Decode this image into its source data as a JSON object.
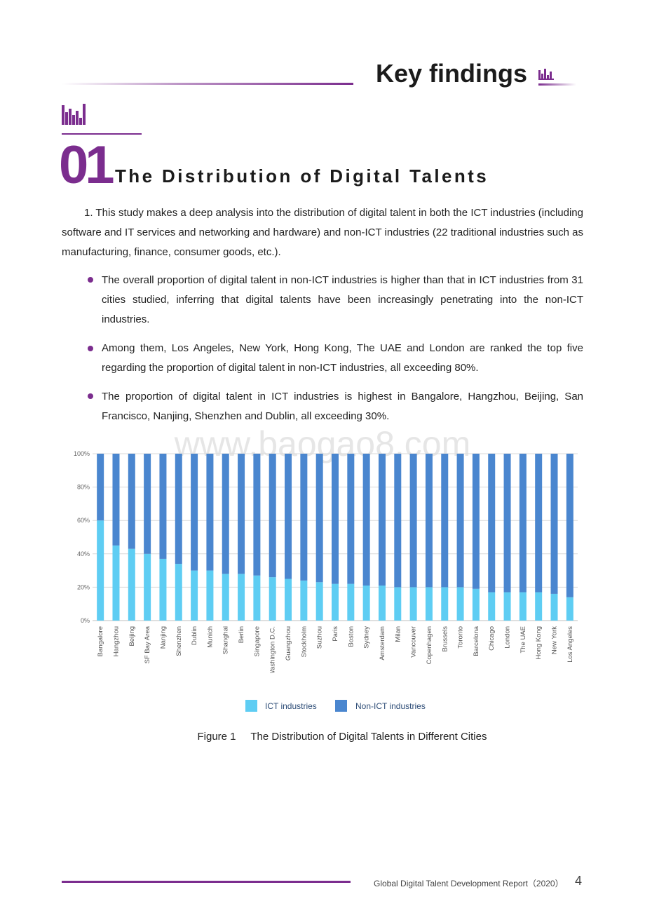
{
  "header": {
    "title": "Key findings"
  },
  "section": {
    "number": "01",
    "title": "The Distribution of Digital Talents"
  },
  "intro_paragraph": "1.  This study makes a deep analysis into the distribution of digital talent in both the ICT industries (including software and IT services and networking and hardware) and non-ICT industries (22 traditional industries such as manufacturing, finance, consumer goods, etc.).",
  "bullets": [
    "The overall proportion of digital talent in non-ICT industries is higher than that in ICT industries from 31 cities studied, inferring that digital talents have been increasingly penetrating into the non-ICT industries.",
    "Among them, Los Angeles, New York, Hong Kong, The UAE and London are ranked the top five regarding the proportion of digital talent in non-ICT industries, all exceeding 80%.",
    "The proportion of digital talent in ICT industries is highest in Bangalore, Hangzhou, Beijing, San Francisco, Nanjing, Shenzhen and Dublin, all exceeding 30%."
  ],
  "watermark": "www.baogao8.com",
  "chart_data": {
    "type": "bar",
    "stacked": true,
    "categories": [
      "Bangalore",
      "Hangzhou",
      "Beijing",
      "SF Bay Area",
      "Nanjing",
      "Shenzhen",
      "Dublin",
      "Munich",
      "Shanghai",
      "Berlin",
      "Singapore",
      "Washington D.C.",
      "Guangzhou",
      "Stockholm",
      "Suzhou",
      "Paris",
      "Boston",
      "Sydney",
      "Amsterdam",
      "Milan",
      "Vancouver",
      "Copenhagen",
      "Brussels",
      "Toronto",
      "Barcelona",
      "Chicago",
      "London",
      "The UAE",
      "Hong Kong",
      "New York",
      "Los Angeles"
    ],
    "series": [
      {
        "name": "ICT industries",
        "color": "#5ecdf3",
        "values": [
          60,
          45,
          43,
          40,
          37,
          34,
          30,
          30,
          28,
          28,
          27,
          26,
          25,
          24,
          23,
          22,
          22,
          21,
          21,
          20,
          20,
          20,
          20,
          20,
          19,
          17,
          17,
          17,
          17,
          16,
          14
        ]
      },
      {
        "name": "Non-ICT industries",
        "color": "#4a86cf",
        "values": [
          40,
          55,
          57,
          60,
          63,
          66,
          70,
          70,
          72,
          72,
          73,
          74,
          75,
          76,
          77,
          78,
          78,
          79,
          79,
          80,
          80,
          80,
          80,
          80,
          81,
          83,
          83,
          83,
          83,
          84,
          86
        ]
      }
    ],
    "ylim": [
      0,
      100
    ],
    "yticks": [
      "0%",
      "20%",
      "40%",
      "60%",
      "80%",
      "100%"
    ],
    "grid": true,
    "legend": "bottom"
  },
  "caption": {
    "label": "Figure 1",
    "text": "The Distribution of Digital Talents in Different Cities"
  },
  "footer": {
    "report": "Global Digital Talent Development Report（2020）",
    "page": "4"
  },
  "colors": {
    "accent": "#7b2d8e",
    "ict": "#5ecdf3",
    "non_ict": "#4a86cf"
  }
}
